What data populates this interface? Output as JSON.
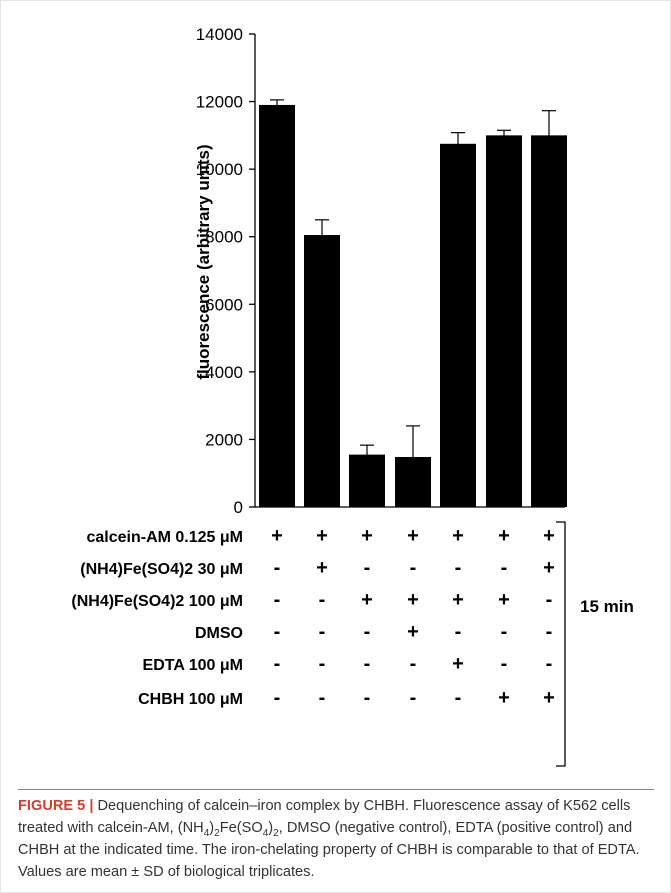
{
  "chart_data": {
    "type": "bar",
    "ylabel": "fluorescence (arbitrary units)",
    "xlabel": "",
    "ylim": [
      0,
      14000
    ],
    "yticks": [
      "0",
      "2000",
      "4000",
      "6000",
      "8000",
      "10000",
      "12000",
      "14000"
    ],
    "grid": false,
    "values": [
      11900,
      8050,
      1550,
      1480,
      10750,
      11000,
      11000
    ],
    "error_high": [
      12050,
      8500,
      1830,
      2400,
      11080,
      11150,
      11730
    ],
    "error_low": [
      11900,
      7170,
      550,
      350,
      9780,
      9850,
      10420
    ],
    "treatment_rows": [
      {
        "label": "calcein-AM 0.125 μM",
        "marks": [
          "+",
          "+",
          "+",
          "+",
          "+",
          "+",
          "+"
        ]
      },
      {
        "label": "(NH4)Fe(SO4)2  30 μM",
        "marks": [
          "-",
          "+",
          "-",
          "-",
          "-",
          "-",
          "+"
        ]
      },
      {
        "label": "(NH4)Fe(SO4)2  100 μM",
        "marks": [
          "-",
          "-",
          "+",
          "+",
          "+",
          "+",
          "-"
        ]
      },
      {
        "label": "DMSO",
        "marks": [
          "-",
          "-",
          "-",
          "+",
          "-",
          "-",
          "-"
        ]
      },
      {
        "label": "EDTA 100 μM",
        "marks": [
          "-",
          "-",
          "-",
          "-",
          "+",
          "-",
          "-"
        ]
      },
      {
        "label": "CHBH 100 μM",
        "marks": [
          "-",
          "-",
          "-",
          "-",
          "-",
          "+",
          "+"
        ]
      }
    ],
    "bracket_label": "15 min"
  },
  "colors": {
    "bar": "#000000",
    "caption_label": "#d63c2b",
    "caption_text": "#333333"
  },
  "caption": {
    "label": "FIGURE 5 |",
    "text_1": " Dequenching of calcein–iron complex by CHBH. Fluorescence assay of K562 cells treated with calcein-AM, (NH",
    "sub_1": "4",
    "text_2": ")",
    "sub_2": "2",
    "text_3": "Fe(SO",
    "sub_3": "4",
    "text_4": ")",
    "sub_4": "2",
    "text_5": ", DMSO (negative control), EDTA (positive control) and CHBH at the indicated time. The iron-chelating property of CHBH is comparable to that of EDTA. Values are mean ± SD of biological triplicates."
  }
}
